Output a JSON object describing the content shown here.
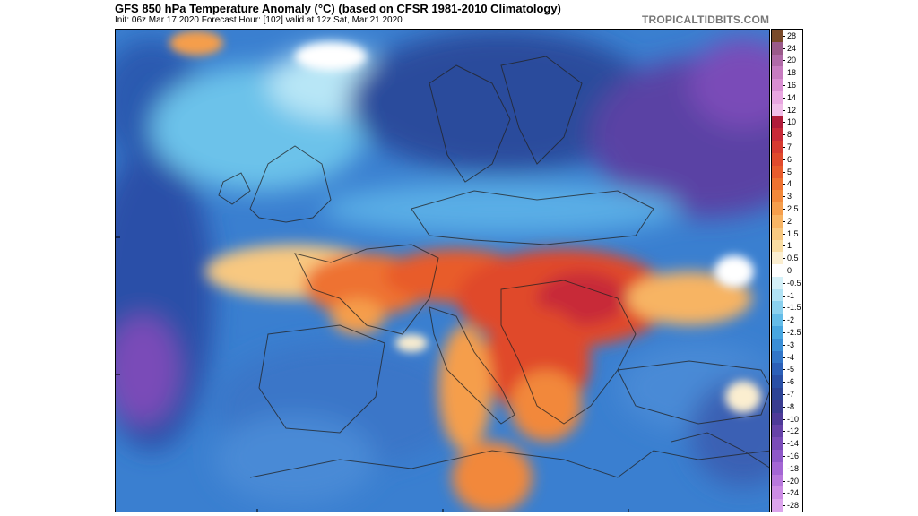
{
  "header": {
    "title": "GFS 850 hPa Temperature Anomaly (°C) (based on CFSR 1981-2010 Climatology)",
    "subtitle": "Init: 06z Mar 17 2020   Forecast Hour: [102]   valid at 12z Sat, Mar 21 2020",
    "source": "TROPICALTIDBITS.COM"
  },
  "legend": {
    "items": [
      {
        "label": "28",
        "color": "#7a4a2a"
      },
      {
        "label": "24",
        "color": "#9a5a8a"
      },
      {
        "label": "20",
        "color": "#b06aa8"
      },
      {
        "label": "18",
        "color": "#c77cc0"
      },
      {
        "label": "16",
        "color": "#d98ed2"
      },
      {
        "label": "14",
        "color": "#e8a6e0"
      },
      {
        "label": "12",
        "color": "#f0bde8"
      },
      {
        "label": "10",
        "color": "#b01c3a"
      },
      {
        "label": "8",
        "color": "#c82a38"
      },
      {
        "label": "7",
        "color": "#d63a30"
      },
      {
        "label": "6",
        "color": "#e04a2c"
      },
      {
        "label": "5",
        "color": "#e85c2c"
      },
      {
        "label": "4",
        "color": "#ee7230"
      },
      {
        "label": "3",
        "color": "#f2883a"
      },
      {
        "label": "2.5",
        "color": "#f59e4c"
      },
      {
        "label": "2",
        "color": "#f7b464"
      },
      {
        "label": "1.5",
        "color": "#f8c880"
      },
      {
        "label": "1",
        "color": "#f9dca2"
      },
      {
        "label": "0.5",
        "color": "#fbeed0"
      },
      {
        "label": "0",
        "color": "#ffffff"
      },
      {
        "label": "-0.5",
        "color": "#d4f0f8"
      },
      {
        "label": "-1",
        "color": "#b0e2f4"
      },
      {
        "label": "-1.5",
        "color": "#8ad0ee"
      },
      {
        "label": "-2",
        "color": "#64bce8"
      },
      {
        "label": "-2.5",
        "color": "#48a6e0"
      },
      {
        "label": "-3",
        "color": "#3a8ed6"
      },
      {
        "label": "-4",
        "color": "#3276c8"
      },
      {
        "label": "-5",
        "color": "#2c60b8"
      },
      {
        "label": "-6",
        "color": "#2a50a6"
      },
      {
        "label": "-7",
        "color": "#2c4496"
      },
      {
        "label": "-8",
        "color": "#3a3c90"
      },
      {
        "label": "-10",
        "color": "#4e3a98"
      },
      {
        "label": "-12",
        "color": "#6642a8"
      },
      {
        "label": "-14",
        "color": "#7a4cb8"
      },
      {
        "label": "-16",
        "color": "#8e58c8"
      },
      {
        "label": "-18",
        "color": "#a466d4"
      },
      {
        "label": "-20",
        "color": "#b878dc"
      },
      {
        "label": "-24",
        "color": "#cc8ce4"
      },
      {
        "label": "-28",
        "color": "#dca4ec"
      }
    ]
  }
}
